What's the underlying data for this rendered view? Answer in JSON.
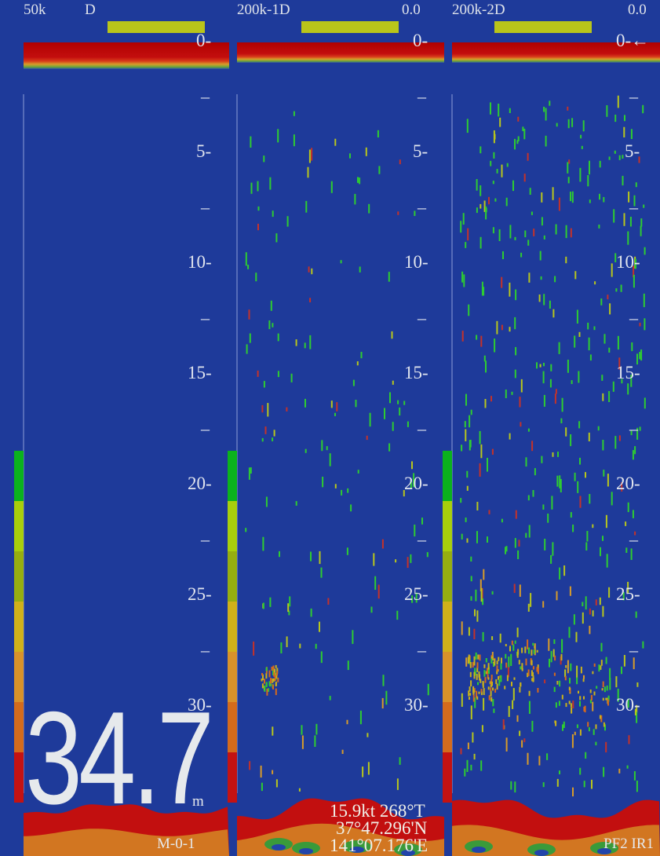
{
  "panels": [
    {
      "freq": "50k",
      "mode": "D",
      "offset": ""
    },
    {
      "freq": "200k-1D",
      "mode": "",
      "offset": "0.0"
    },
    {
      "freq": "200k-2D",
      "mode": "",
      "offset": "0.0"
    }
  ],
  "depth_scale": {
    "labels": [
      "0-",
      "5-",
      "10-",
      "15-",
      "20-",
      "25-",
      "30-"
    ],
    "values": [
      0,
      5,
      10,
      15,
      20,
      25,
      30
    ],
    "third_panel_zero": "0-←"
  },
  "readout": {
    "depth": "34.7",
    "depth_unit": "m",
    "mode_text": "M-0-1",
    "speed_heading": "15.9kt 268°T",
    "latitude": "37°47.296'N",
    "longitude": "141°07.176'E",
    "status": "PF2  IR1"
  },
  "colors": {
    "background": "#1e3a9a",
    "gain_bar": "#b9c51a",
    "text": "#e1e5ee",
    "echo_strong": "#c30e0e",
    "echo_mid": "#d89c2a",
    "echo_weak": "#2ecc31"
  },
  "color_scale": [
    "#0bb21d",
    "#a8cf0c",
    "#96ae10",
    "#d0b11a",
    "#d8922a",
    "#d46b1c",
    "#c41212"
  ]
}
